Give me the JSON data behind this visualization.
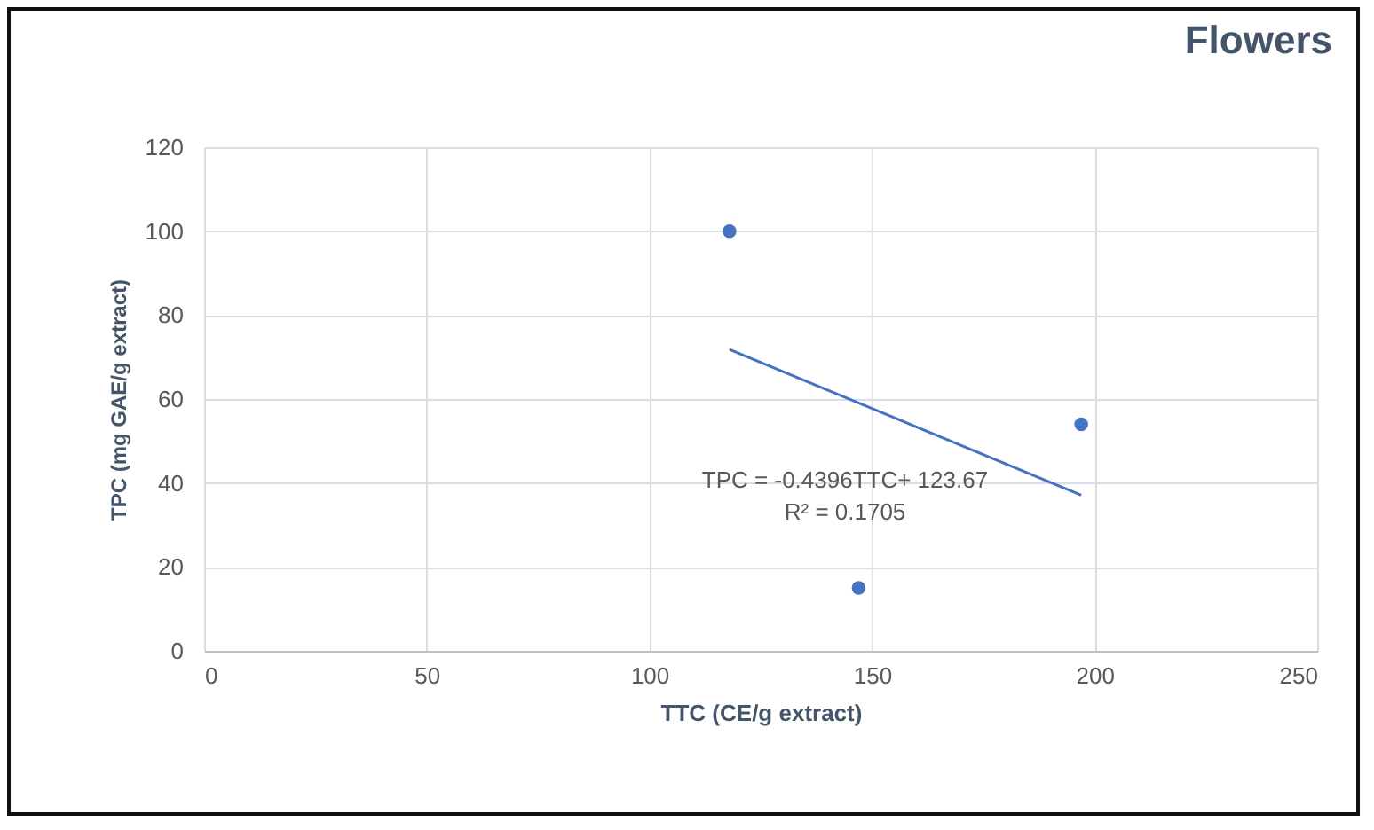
{
  "chart_data": {
    "type": "scatter",
    "title": "Flowers",
    "xlabel": "TTC (CE/g extract)",
    "ylabel": "TPC (mg GAE/g extract)",
    "xlim": [
      0,
      250
    ],
    "xticks": [
      0,
      50,
      100,
      150,
      200,
      250
    ],
    "ylim": [
      0,
      120
    ],
    "yticks": [
      0,
      20,
      40,
      60,
      80,
      100,
      120
    ],
    "grid": true,
    "series": [
      {
        "color": "#4472c4",
        "marker": "circle",
        "x": [
          118,
          147,
          197
        ],
        "values": [
          100,
          15,
          54
        ]
      },
      {
        "type": "line",
        "marker": "none",
        "color": "#4472c4",
        "x": [
          118,
          197
        ],
        "values": [
          71.8,
          37.1
        ]
      }
    ],
    "annotations": [
      "TPC = -0.4396TTC+ 123.67",
      "R² = 0.1705"
    ]
  }
}
